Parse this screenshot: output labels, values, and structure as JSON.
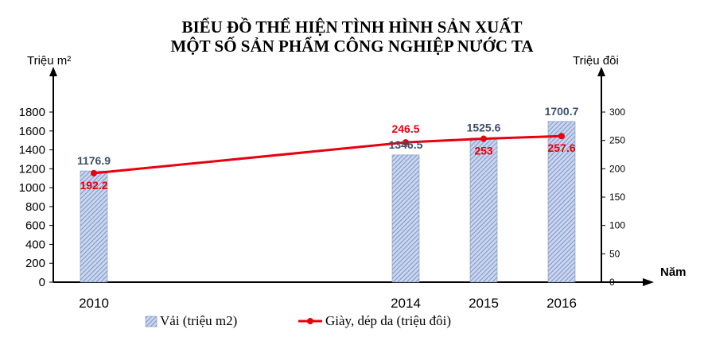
{
  "title_line1": "BIỂU ĐỒ THỂ HIỆN TÌNH HÌNH SẢN XUẤT",
  "title_line2": "MỘT SỐ SẢN PHẨM CÔNG NGHIỆP NƯỚC TA",
  "chart_data": {
    "type": "bar-line combo",
    "title": "BIỂU ĐỒ THỂ HIỆN TÌNH HÌNH SẢN XUẤT MỘT SỐ SẢN PHẨM CÔNG NGHIỆP NƯỚC TA",
    "xlabel": "Năm",
    "ylabel_left": "Triệu m²",
    "ylabel_right": "Triệu đôi",
    "x": [
      2010,
      2014,
      2015,
      2016
    ],
    "x_labels": [
      "2010",
      "2014",
      "2015",
      "2016"
    ],
    "ylim_left": [
      0,
      1800
    ],
    "ylim_right": [
      0,
      300
    ],
    "left_ticks": [
      0,
      200,
      400,
      600,
      800,
      1000,
      1200,
      1400,
      1600,
      1800
    ],
    "right_ticks": [
      0,
      50,
      100,
      150,
      200,
      250,
      300
    ],
    "grid": false,
    "legend_position": "bottom",
    "series": [
      {
        "name": "Vải (triệu m2)",
        "type": "bar",
        "axis": "left",
        "values": [
          1176.9,
          1346.5,
          1525.6,
          1700.7
        ],
        "labels": [
          "1176.9",
          "1346.5",
          "1525.6",
          "1700.7"
        ],
        "color": "#8fa6d4"
      },
      {
        "name": "Giày, dép da (triệu đôi)",
        "type": "line",
        "axis": "right",
        "values": [
          192.2,
          246.5,
          253,
          257.6
        ],
        "labels": [
          "192.2",
          "246.5",
          "253",
          "257.6"
        ],
        "color": "#e8000d"
      }
    ]
  }
}
